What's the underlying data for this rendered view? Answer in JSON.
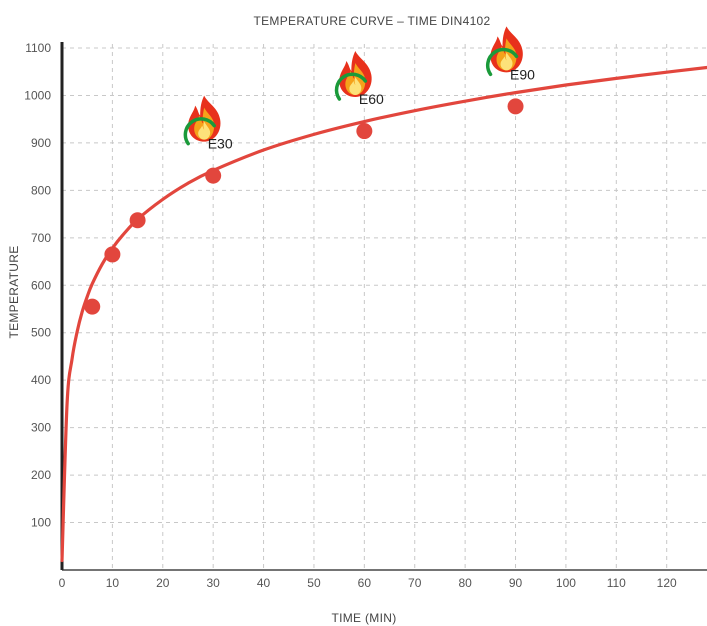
{
  "chart_data": {
    "type": "line",
    "title": "TEMPERATURE CURVE – TIME DIN4102",
    "xlabel": "TIME (MIN)",
    "ylabel": "TEMPERATURE",
    "xlim": [
      0,
      128
    ],
    "ylim": [
      0,
      1100
    ],
    "x_ticks": [
      0,
      10,
      20,
      30,
      40,
      50,
      60,
      70,
      80,
      90,
      100,
      110,
      120
    ],
    "y_ticks": [
      100,
      200,
      300,
      400,
      500,
      600,
      700,
      800,
      900,
      1000,
      1100
    ],
    "grid": true,
    "series": [
      {
        "color": "#e2463d",
        "x": [
          0,
          1,
          2,
          3,
          4,
          5,
          6,
          8,
          10,
          12,
          15,
          20,
          25,
          30,
          40,
          50,
          60,
          70,
          80,
          90,
          100,
          110,
          120,
          128
        ],
        "y": [
          20,
          349,
          445,
          502,
          544,
          576,
          603,
          645,
          678,
          705,
          739,
          781,
          815,
          842,
          885,
          918,
          945,
          968,
          988,
          1006,
          1022,
          1036,
          1049,
          1059
        ]
      }
    ],
    "markers": [
      {
        "x": 6,
        "y": 555
      },
      {
        "x": 10,
        "y": 665
      },
      {
        "x": 15,
        "y": 737
      },
      {
        "x": 30,
        "y": 831
      },
      {
        "x": 60,
        "y": 925
      },
      {
        "x": 90,
        "y": 977
      }
    ],
    "annotations": [
      {
        "label": "E30",
        "x": 30,
        "icon": "flame-icon"
      },
      {
        "label": "E60",
        "x": 60,
        "icon": "flame-icon"
      },
      {
        "label": "E90",
        "x": 90,
        "icon": "flame-icon"
      }
    ],
    "colors": {
      "line": "#e2463d",
      "grid": "#c8c8c8",
      "axis": "#222222",
      "flame_outer": "#e8311c",
      "flame_mid": "#f5a21a",
      "flame_inner": "#fde27a",
      "badge_arc": "#1a9a3a"
    }
  }
}
